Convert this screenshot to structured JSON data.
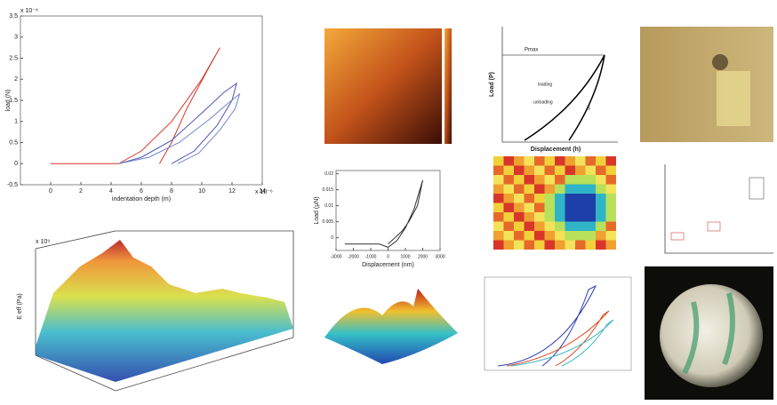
{
  "chart_data": [
    {
      "type": "line",
      "y_label": "load (N)",
      "x_label": "indentation depth (m)",
      "y_multiplier": "x 10⁻⁴",
      "x_multiplier": "x 10⁻⁶",
      "xlim": [
        -2,
        14
      ],
      "ylim": [
        -0.5,
        3.5
      ],
      "xticks": [
        0,
        2,
        4,
        6,
        8,
        10,
        12,
        14
      ],
      "yticks": [
        -0.5,
        0,
        0.5,
        1,
        1.5,
        2,
        2.5,
        3,
        3.5
      ],
      "series": [
        {
          "color": "#d9372b",
          "x": [
            0,
            4.5,
            6,
            8,
            10,
            11.2,
            10.5,
            9,
            8,
            7.2
          ],
          "values": [
            0,
            0,
            0.3,
            1.0,
            2.0,
            2.75,
            2.3,
            1.3,
            0.5,
            0
          ]
        },
        {
          "color": "#4a55b8",
          "x": [
            4.5,
            6,
            8,
            10,
            11.5,
            12.3,
            12,
            11,
            9.5,
            8
          ],
          "values": [
            0,
            0.15,
            0.55,
            1.2,
            1.7,
            1.9,
            1.5,
            0.9,
            0.3,
            0
          ]
        },
        {
          "color": "#6f86c9",
          "x": [
            4.5,
            6.5,
            8.5,
            10.5,
            11.8,
            12.5,
            12.2,
            11.2,
            9.8,
            8.4
          ],
          "values": [
            0,
            0.15,
            0.5,
            1.05,
            1.45,
            1.65,
            1.3,
            0.8,
            0.25,
            0
          ]
        }
      ]
    },
    {
      "type": "line",
      "y_label": "Load (μN)",
      "x_label": "Displacement (nm)",
      "xlim": [
        -3000,
        3000
      ],
      "ylim": [
        -0.004,
        0.021
      ],
      "xticks": [
        -3000,
        -2000,
        -1000,
        0,
        1000,
        2000,
        3000
      ],
      "yticks": [
        0,
        0.005,
        0.01,
        0.015,
        0.02
      ],
      "series": [
        {
          "color": "#333333",
          "x": [
            -2500,
            -1500,
            -500,
            0,
            500,
            1000,
            1500,
            2000,
            1700,
            1200,
            800,
            400,
            0
          ],
          "values": [
            -0.002,
            -0.002,
            -0.002,
            -0.003,
            -0.001,
            0.003,
            0.009,
            0.018,
            0.01,
            0.005,
            0.002,
            0,
            -0.002
          ]
        }
      ]
    }
  ],
  "diagram": {
    "y_label": "Load (P)",
    "x_label": "Displacement (h)",
    "p_max": "Pmax",
    "loading": "loading",
    "unloading": "unloading",
    "s": "S"
  },
  "surface": {
    "y_label": "E eff (Pa)",
    "multiplier": "x 10⁹"
  }
}
